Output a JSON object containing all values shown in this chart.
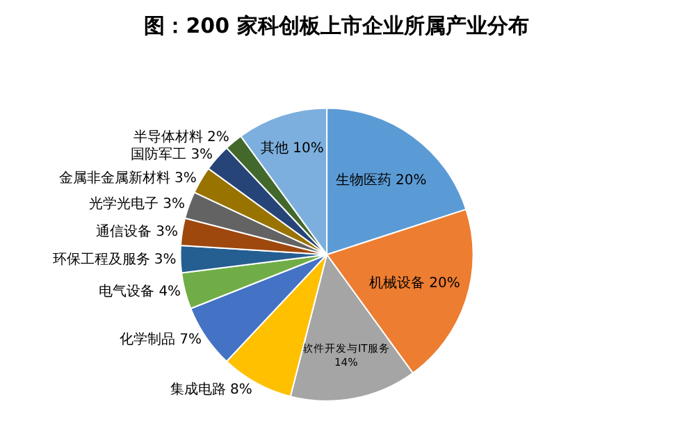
{
  "chart_data": {
    "type": "pie",
    "title": "图：200 家科创板上市企业所属产业分布",
    "categories": [
      "生物医药",
      "机械设备",
      "软件开发与IT服务",
      "集成电路",
      "化学制品",
      "电气设备",
      "环保工程及服务",
      "通信设备",
      "光学光电子",
      "金属非金属新材料",
      "国防军工",
      "半导体材料",
      "其他"
    ],
    "values": [
      20,
      20,
      14,
      8,
      7,
      4,
      3,
      3,
      3,
      3,
      3,
      2,
      10
    ],
    "value_labels": [
      "20%",
      "20%",
      "14%",
      "8%",
      "7%",
      "4%",
      "3%",
      "3%",
      "3%",
      "3%",
      "3%",
      "2%",
      "10%"
    ],
    "colors": [
      "#5b9bd5",
      "#ed7d31",
      "#a5a5a5",
      "#ffc000",
      "#4472c4",
      "#70ad47",
      "#255e91",
      "#9e480e",
      "#636363",
      "#997300",
      "#264478",
      "#43682b",
      "#7cafdd"
    ],
    "legend": false
  }
}
